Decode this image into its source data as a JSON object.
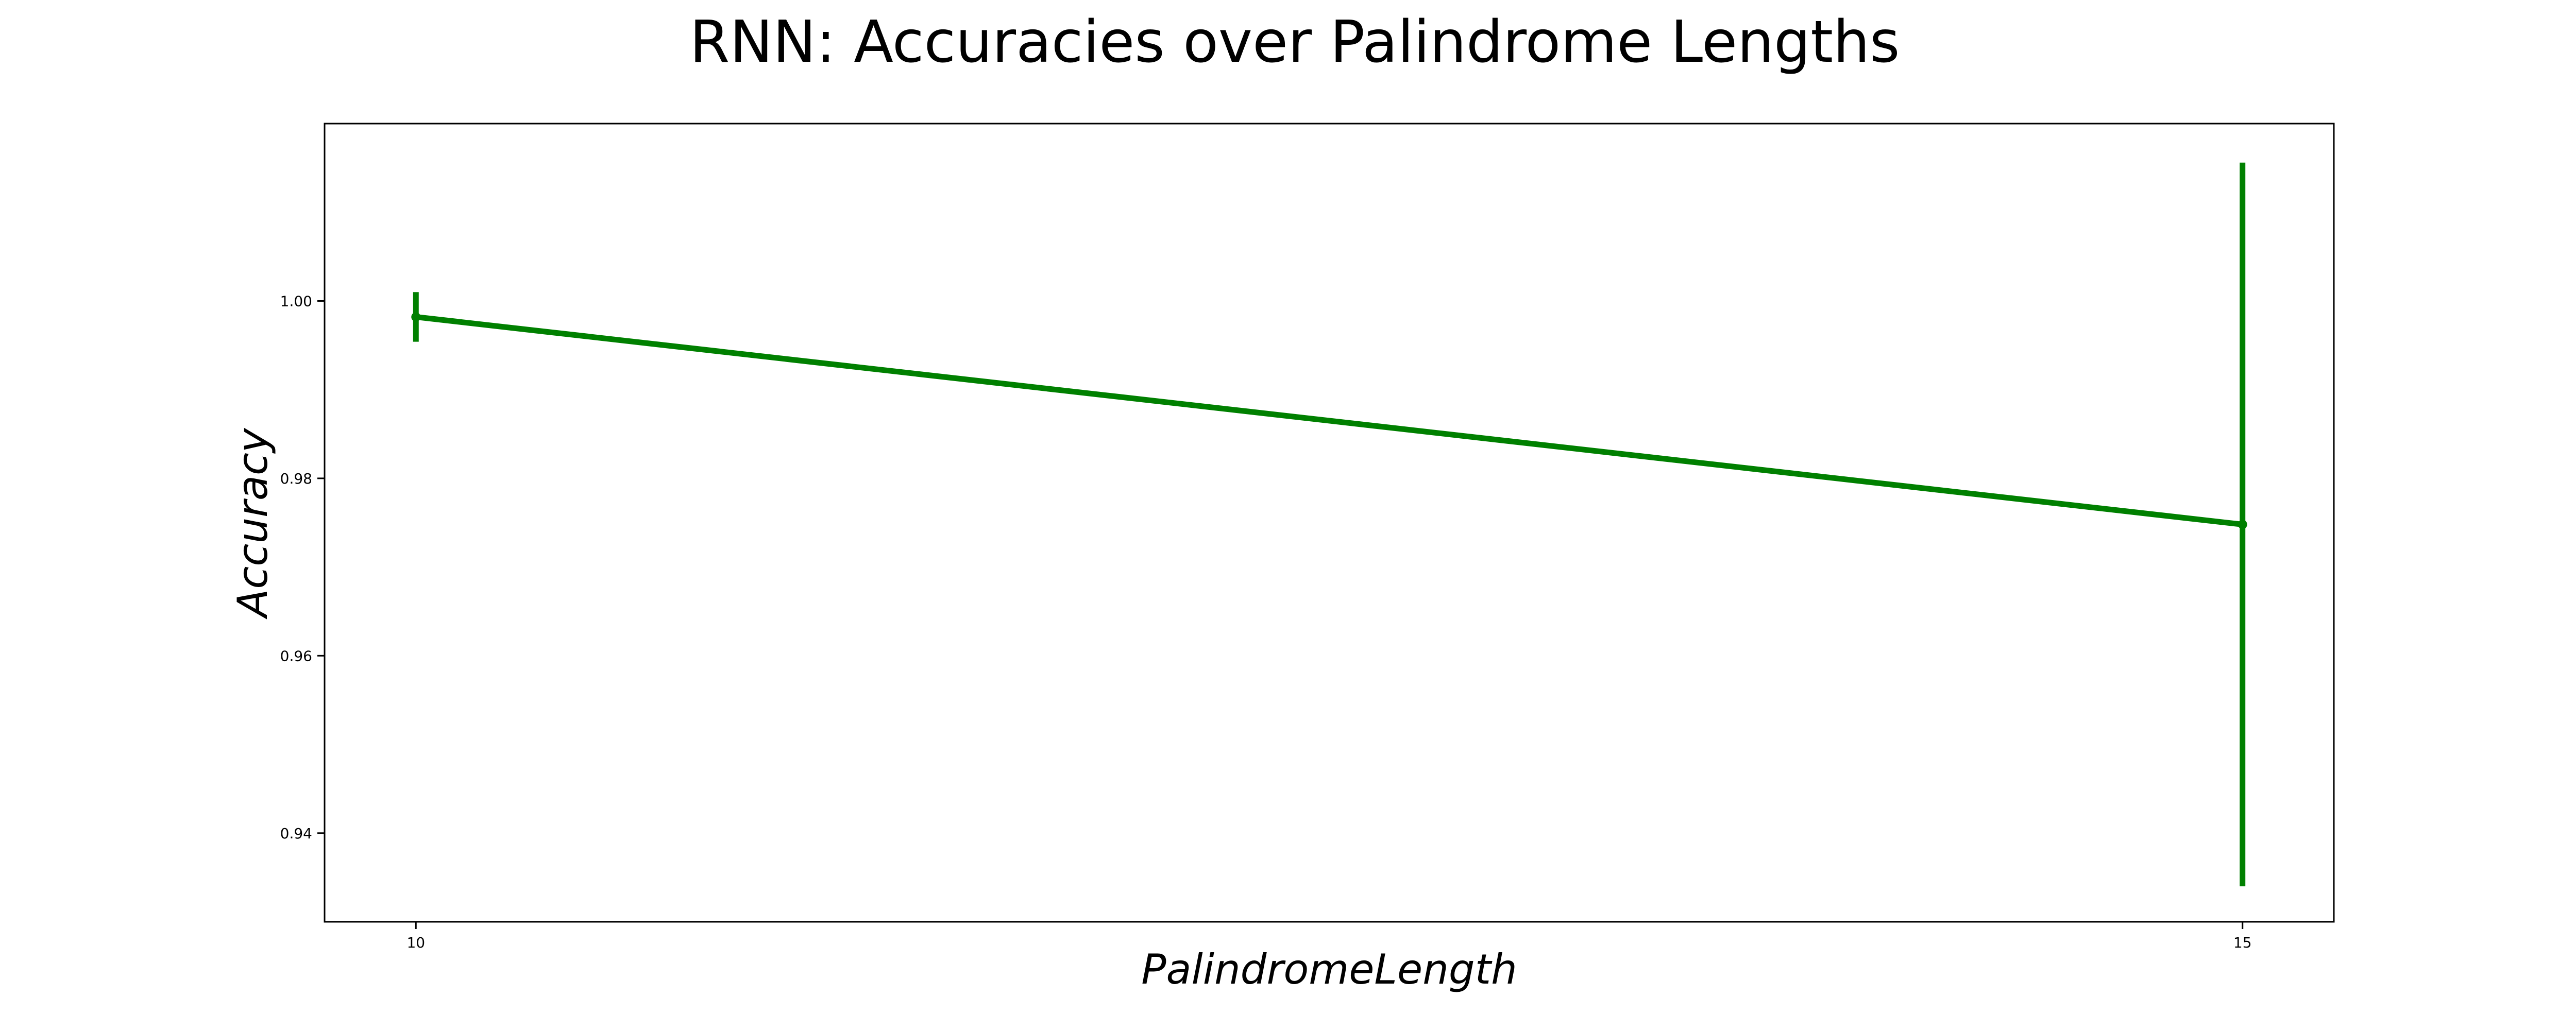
{
  "chart_data": {
    "type": "line",
    "title": "RNN: Accuracies over Palindrome Lengths",
    "xlabel": "PalindromeLength",
    "ylabel": "Accuracy",
    "x": [
      10,
      15
    ],
    "xticks": [
      10,
      15
    ],
    "xlim": [
      9.75,
      15.25
    ],
    "ylim": [
      0.93,
      1.02
    ],
    "yticks": [
      0.94,
      0.96,
      0.98,
      1.0
    ],
    "ytick_labels": [
      "0.94",
      "0.96",
      "0.98",
      "1.00"
    ],
    "series": [
      {
        "values": [
          0.9982,
          0.9748
        ],
        "error": [
          0.0028,
          0.0408
        ],
        "color": "#008000"
      }
    ],
    "grid": false,
    "legend": "none"
  }
}
